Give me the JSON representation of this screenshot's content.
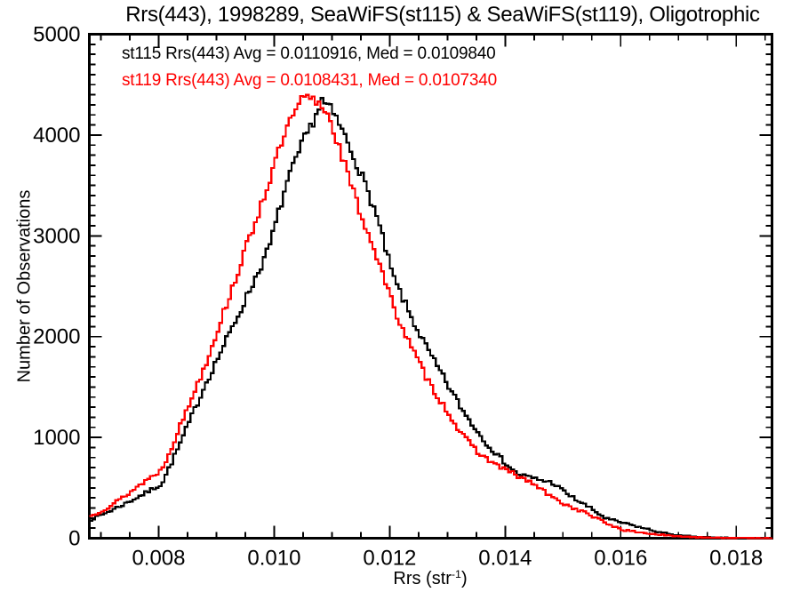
{
  "chart": {
    "title": "Rrs(443), 1998289, SeaWiFS(st115) & SeaWiFS(st119), Oligotrophic",
    "legend": [
      {
        "label": "st115 Rrs(443) Avg = 0.0110916, Med = 0.0109840",
        "color": "#000000"
      },
      {
        "label": "st119 Rrs(443) Avg = 0.0108431, Med = 0.0107340",
        "color": "#ff0000"
      }
    ],
    "ylabel": "Number of Observations",
    "xlabel": {
      "main": "Rrs (str",
      "sup": "-1",
      "end": ")"
    }
  },
  "chart_data": {
    "type": "line",
    "subtype": "step-histogram",
    "title": "Rrs(443), 1998289, SeaWiFS(st115) & SeaWiFS(st119), Oligotrophic",
    "xlabel": "Rrs (str⁻¹)",
    "ylabel": "Number of Observations",
    "xlim": [
      0.0068,
      0.01862
    ],
    "ylim": [
      0,
      5000
    ],
    "x_ticks": [
      0.008,
      0.01,
      0.012,
      0.014,
      0.016,
      0.018
    ],
    "x_tick_labels": [
      "0.008",
      "0.010",
      "0.012",
      "0.014",
      "0.016",
      "0.018"
    ],
    "x_minor_step": 0.0005,
    "y_ticks": [
      0,
      1000,
      2000,
      3000,
      4000,
      5000
    ],
    "y_tick_labels": [
      "0",
      "1000",
      "2000",
      "3000",
      "4000",
      "5000"
    ],
    "y_minor_step": 100,
    "grid": false,
    "legend_position": "top-left-inside",
    "x": [
      0.0068,
      0.00711,
      0.00742,
      0.00772,
      0.00803,
      0.00834,
      0.0088,
      0.00926,
      0.00988,
      0.01018,
      0.01049,
      0.01062,
      0.0108,
      0.01095,
      0.01111,
      0.01142,
      0.01172,
      0.01203,
      0.01234,
      0.01265,
      0.01295,
      0.01326,
      0.01357,
      0.01388,
      0.01418,
      0.01449,
      0.0148,
      0.01511,
      0.01542,
      0.01572,
      0.01603,
      0.01634,
      0.01665,
      0.01695,
      0.01726,
      0.01757,
      0.01803,
      0.01849,
      0.01862
    ],
    "series": [
      {
        "name": "st115",
        "color": "#000000",
        "avg": 0.0110916,
        "med": 0.010984,
        "values": [
          185,
          265,
          350,
          440,
          540,
          930,
          1550,
          2100,
          2870,
          3500,
          3950,
          4100,
          4340,
          4250,
          4100,
          3700,
          3250,
          2600,
          2200,
          1850,
          1550,
          1250,
          1000,
          800,
          640,
          590,
          550,
          415,
          310,
          195,
          150,
          105,
          60,
          30,
          15,
          8,
          4,
          2,
          0
        ]
      },
      {
        "name": "st119",
        "color": "#ff0000",
        "avg": 0.0108431,
        "med": 0.010734,
        "values": [
          220,
          310,
          430,
          560,
          680,
          1100,
          1750,
          2500,
          3530,
          4050,
          4380,
          4350,
          4300,
          4150,
          3860,
          3300,
          2850,
          2310,
          1900,
          1550,
          1280,
          1000,
          820,
          710,
          620,
          530,
          400,
          310,
          240,
          150,
          80,
          55,
          35,
          20,
          12,
          6,
          3,
          2,
          0
        ]
      }
    ]
  }
}
